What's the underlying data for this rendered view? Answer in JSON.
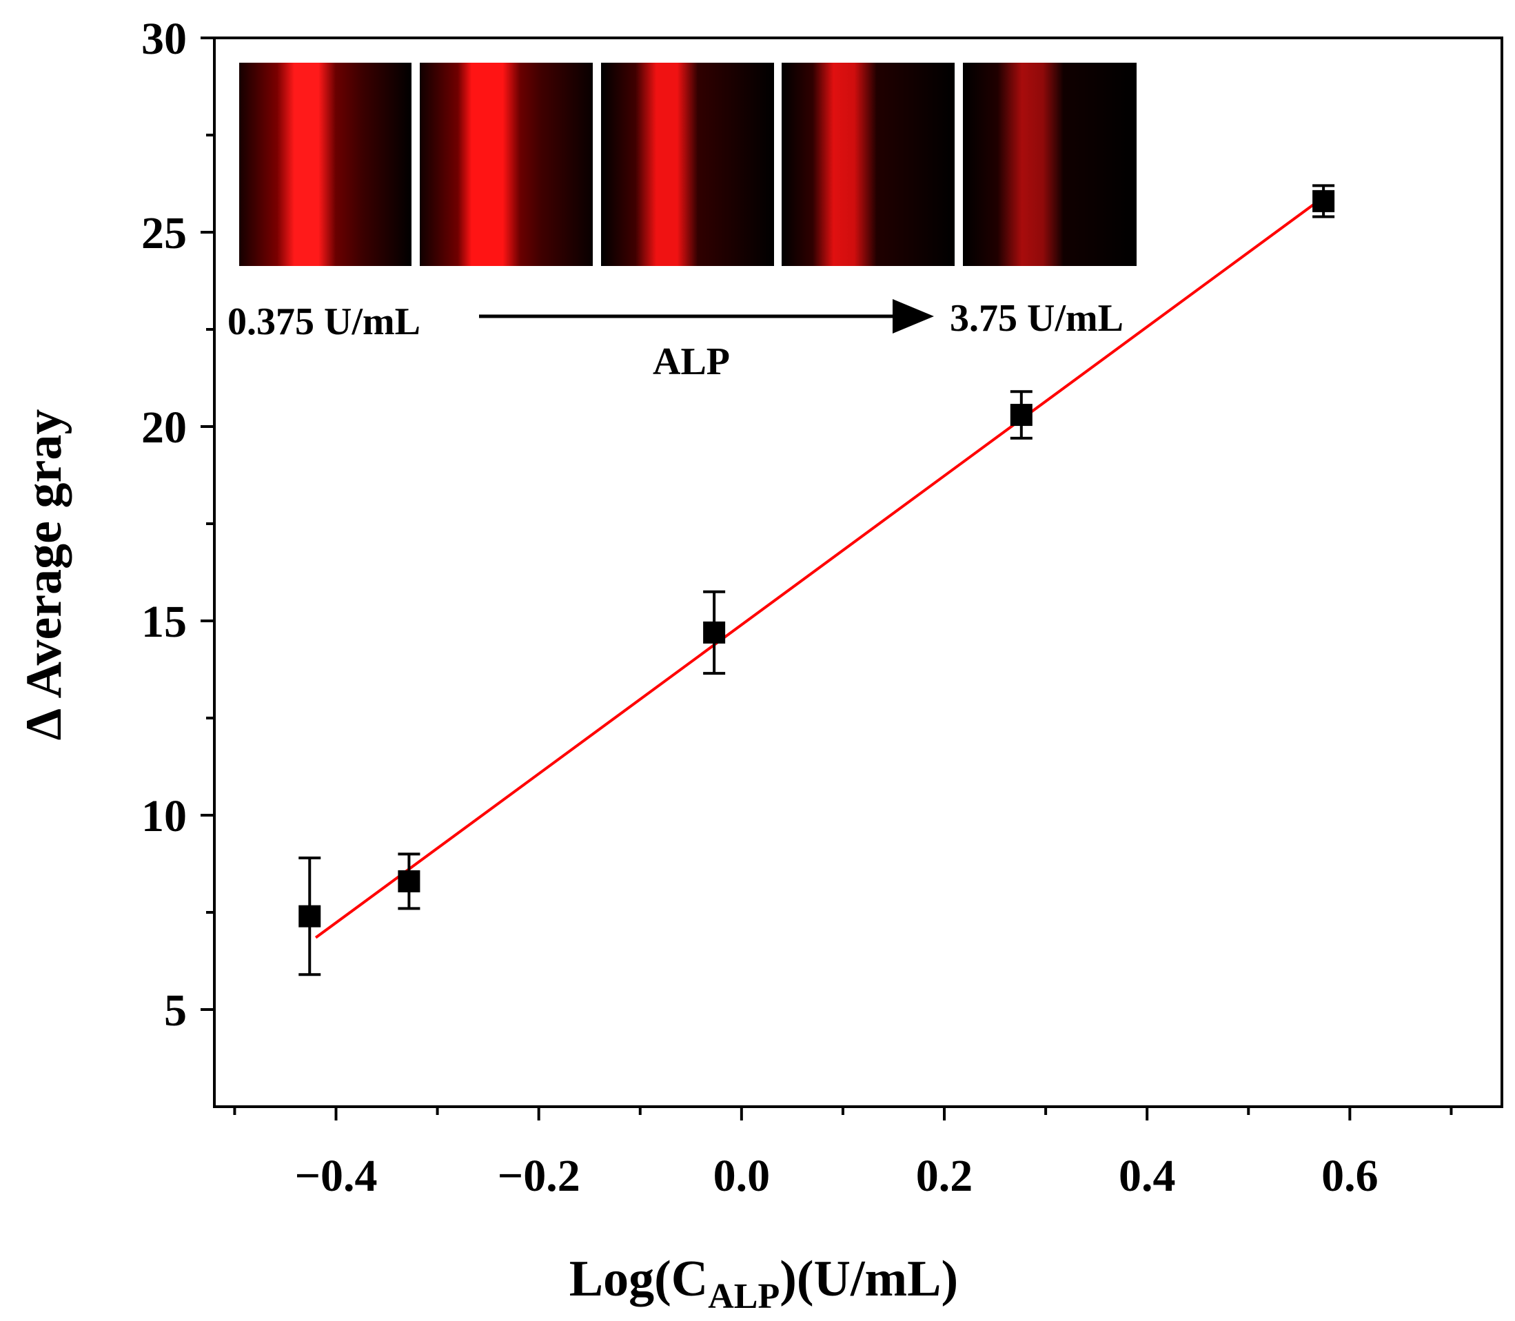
{
  "chart_data": {
    "type": "scatter",
    "xlabel": "Log(C",
    "xlabel_sub": "ALP",
    "xlabel_tail": ")(U/mL)",
    "ylabel": "Δ Average gray",
    "xlim": [
      -0.52,
      0.75
    ],
    "ylim": [
      2.5,
      30
    ],
    "x_ticks": [
      -0.4,
      -0.2,
      0.0,
      0.2,
      0.4,
      0.6
    ],
    "x_tick_labels": [
      "−0.4",
      "−0.2",
      "0.0",
      "0.2",
      "0.4",
      "0.6"
    ],
    "y_ticks": [
      5,
      10,
      15,
      20,
      25,
      30
    ],
    "y_tick_labels": [
      "5",
      "10",
      "15",
      "20",
      "25",
      "30"
    ],
    "series": [
      {
        "marker": "square",
        "color": "#000000",
        "points": [
          {
            "x": -0.426,
            "y": 7.4,
            "err": 1.5
          },
          {
            "x": -0.328,
            "y": 8.3,
            "err": 0.7
          },
          {
            "x": -0.027,
            "y": 14.7,
            "err": 1.05
          },
          {
            "x": 0.276,
            "y": 20.3,
            "err": 0.6
          },
          {
            "x": 0.574,
            "y": 25.8,
            "err": 0.4
          }
        ]
      }
    ],
    "fit_line": {
      "color": "#ff0000",
      "x_range": [
        -0.42,
        0.574
      ],
      "y_range": [
        6.85,
        25.9
      ]
    },
    "inset": {
      "start_label": "0.375 U/mL",
      "end_label": "3.75 U/mL",
      "arrow_label": "ALP",
      "strip_colors": [
        "#ff1a1a",
        "#ff1414",
        "#f01212",
        "#e01010",
        "#a80c0c"
      ],
      "strip_count": 5
    },
    "grid": false,
    "legend": "none"
  }
}
